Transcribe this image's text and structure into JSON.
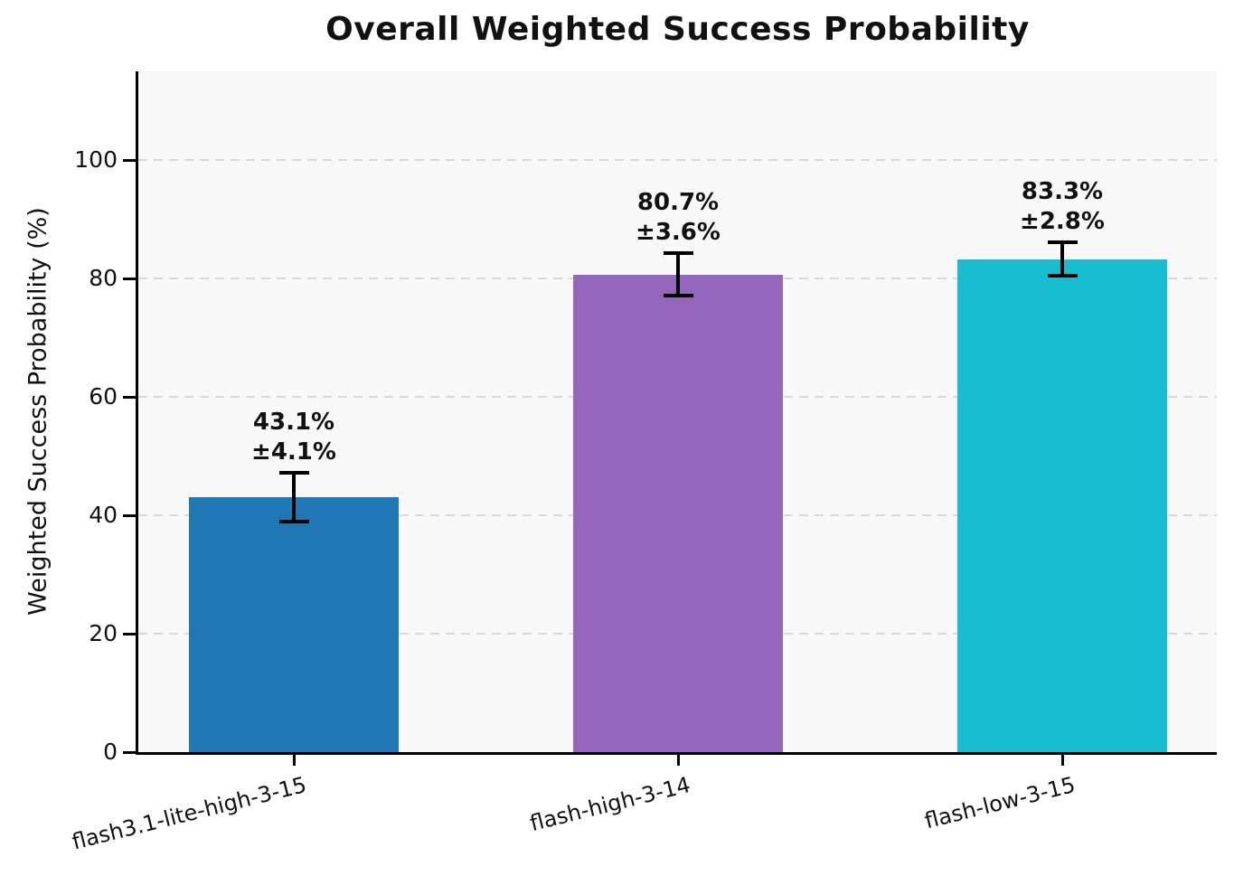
{
  "chart_data": {
    "type": "bar",
    "title": "Overall Weighted Success Probability",
    "ylabel": "Weighted Success Probability (%)",
    "xlabel": "",
    "categories": [
      "flash3.1-lite-high-3-15",
      "flash-high-3-14",
      "flash-low-3-15"
    ],
    "values": [
      43.1,
      80.7,
      83.3
    ],
    "error_bars": [
      4.1,
      3.6,
      2.8
    ],
    "bar_labels": [
      [
        "43.1%",
        "±4.1%"
      ],
      [
        "80.7%",
        "±3.6%"
      ],
      [
        "83.3%",
        "±2.8%"
      ]
    ],
    "bar_colors": [
      "#1f77b4",
      "#9467bd",
      "#17becf"
    ],
    "yticks": [
      0,
      20,
      40,
      60,
      80,
      100
    ],
    "ylim": [
      0,
      115
    ],
    "grid": "horizontal-dashed",
    "grid_color": "#d9d9d9",
    "plot_background": "#f8f8f8",
    "error_bar_color": "#000000",
    "legend": "none"
  }
}
